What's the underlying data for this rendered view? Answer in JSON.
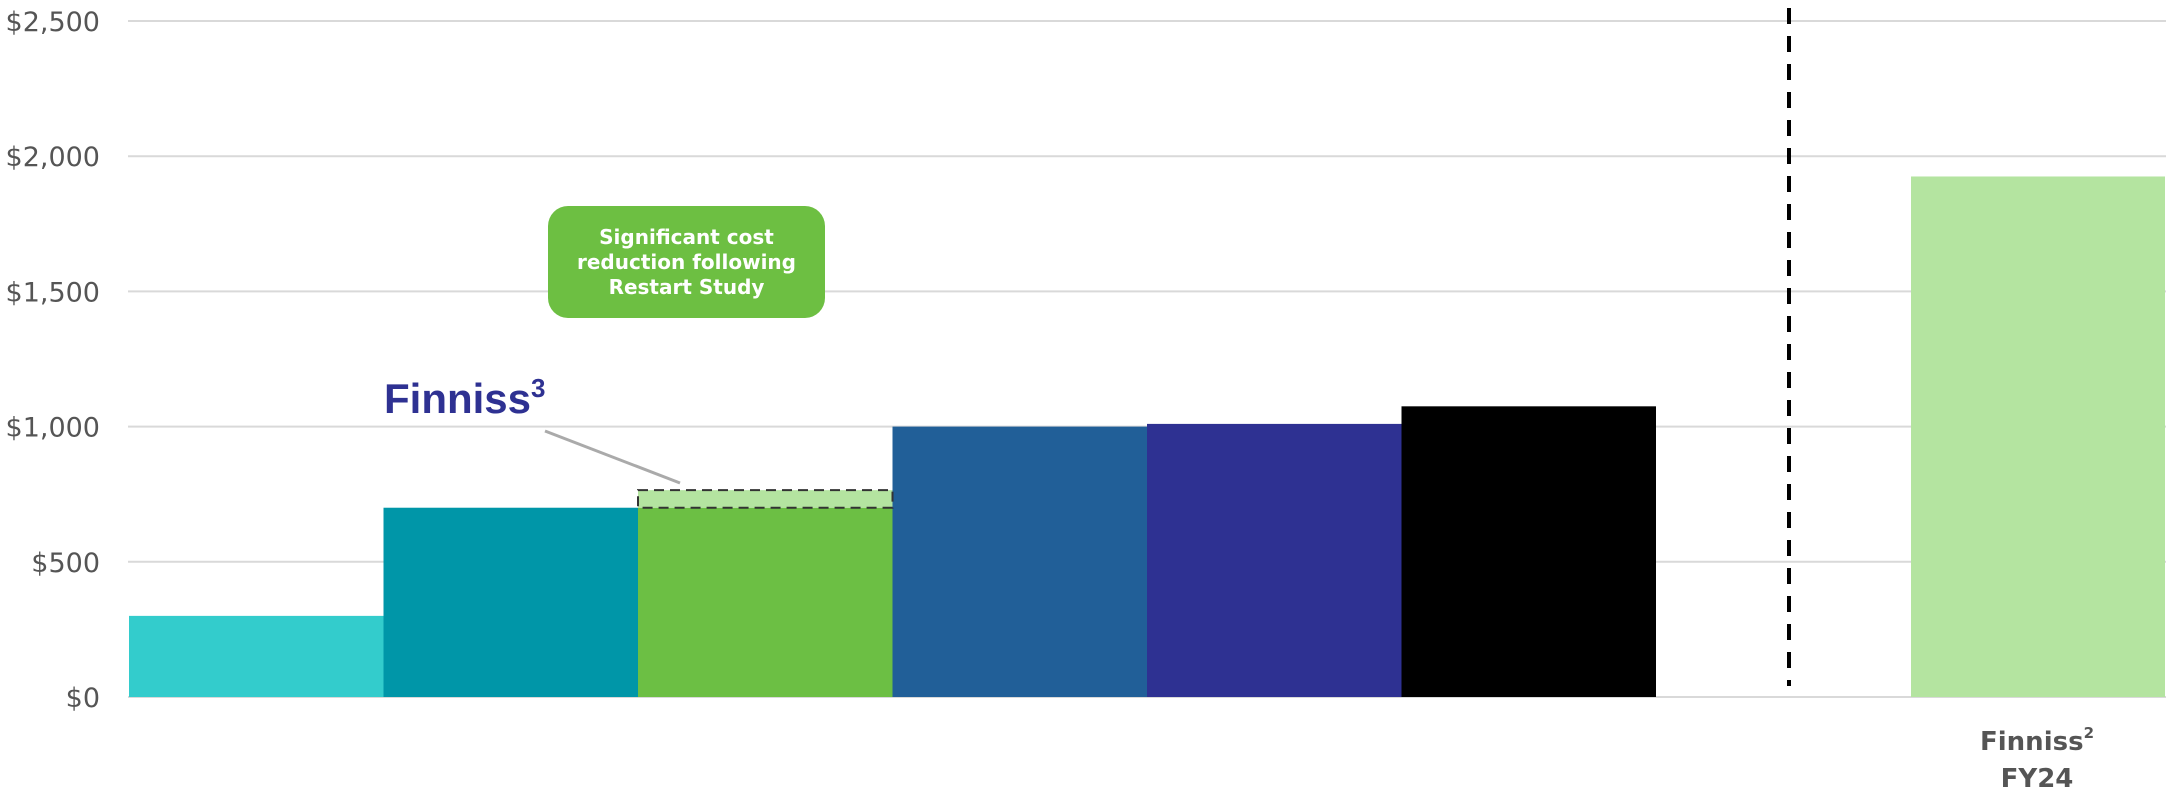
{
  "chart_data": {
    "type": "bar",
    "categories": [
      "",
      "",
      "",
      "",
      "",
      "",
      "Finniss FY24"
    ],
    "values": [
      300,
      700,
      700,
      1000,
      1010,
      1075,
      1925
    ],
    "colors": [
      "#33cccc",
      "#0096a8",
      "#6cbf44",
      "#215f98",
      "#2e3192",
      "#000000",
      "#b4e4a0"
    ],
    "highlight_segment": {
      "category_index": 2,
      "from": 700,
      "to": 765,
      "color": "#b4e4a0"
    },
    "ylim": [
      0,
      2500
    ],
    "yticks": [
      0,
      500,
      1000,
      1500,
      2000,
      2500
    ],
    "ytick_labels": [
      "$0",
      "$500",
      "$1,000",
      "$1,500",
      "$2,000",
      "$2,500"
    ],
    "grid": true,
    "divider_after_index": 5,
    "x_labels": {
      "finniss_fy24": {
        "line1": "Finniss",
        "sup": "2",
        "line2": "FY24"
      }
    },
    "annotations": {
      "finniss_label": {
        "text": "Finniss",
        "sup": "3"
      },
      "note": "Significant cost reduction following Restart Study"
    }
  }
}
